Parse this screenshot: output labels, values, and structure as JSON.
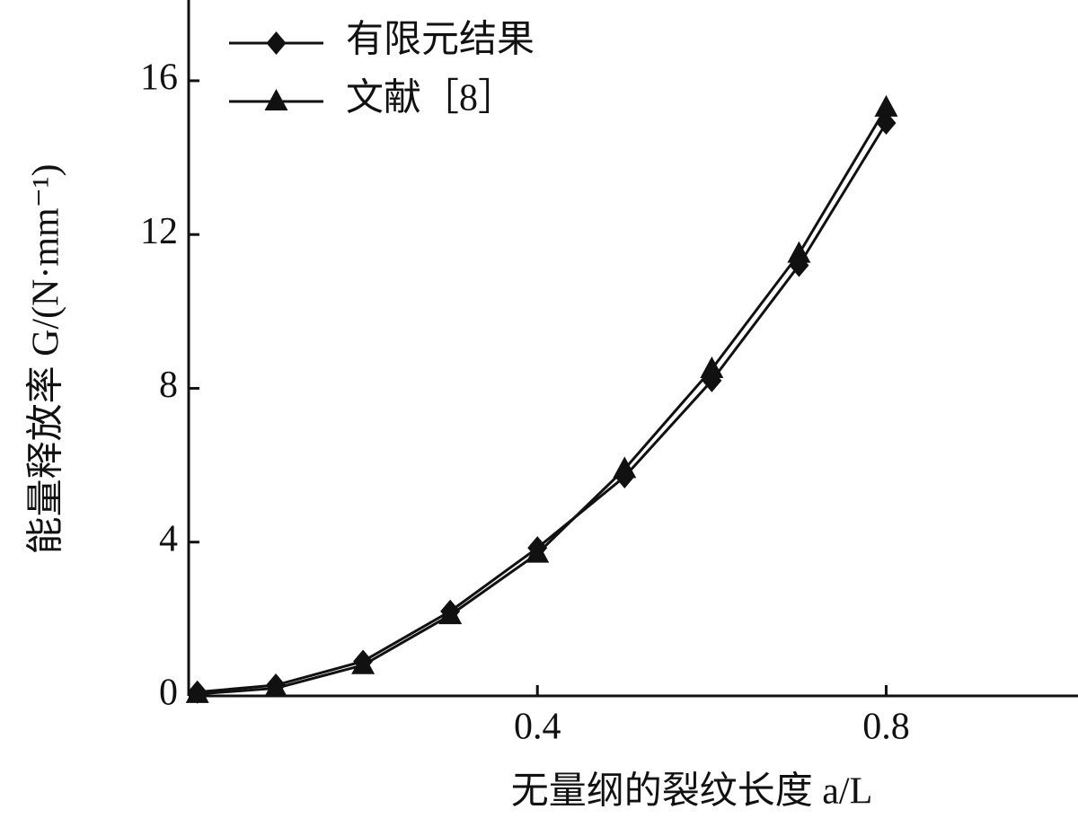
{
  "chart_data": {
    "type": "line",
    "x_label": "无量纲的裂纹长度 a/L",
    "y_label": "能量释放率 G/(N·mm⁻¹)",
    "x": [
      0.01,
      0.1,
      0.2,
      0.3,
      0.4,
      0.5,
      0.6,
      0.7,
      0.8
    ],
    "series": [
      {
        "name": "有限元结果",
        "color": "#111111",
        "marker": "diamond",
        "values": [
          0.1,
          0.28,
          0.9,
          2.2,
          3.85,
          5.7,
          8.2,
          11.2,
          14.9
        ]
      },
      {
        "name": "文献［8］",
        "color": "#111111",
        "marker": "triangle",
        "values": [
          0.05,
          0.2,
          0.8,
          2.1,
          3.7,
          5.9,
          8.5,
          11.5,
          15.3
        ]
      }
    ],
    "xlim": [
      0,
      1.02
    ],
    "ylim": [
      0,
      18.1
    ],
    "xticks": [
      0.4,
      0.8
    ],
    "yticks": [
      0,
      4,
      8,
      12,
      16
    ],
    "legend": "upper-left"
  }
}
